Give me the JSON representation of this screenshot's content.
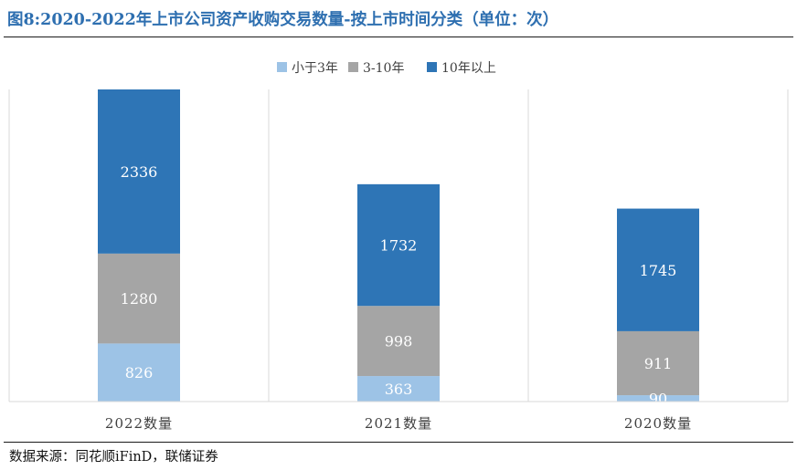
{
  "title": "图8:2020-2022年上市公司资产收购交易数量-按上市时间分类（单位：次）",
  "source": "数据来源：同花顺iFinD，联储证券",
  "chart_data": {
    "type": "bar",
    "stacked": true,
    "title": "图8:2020-2022年上市公司资产收购交易数量-按上市时间分类（单位：次）",
    "categories": [
      "2022数量",
      "2021数量",
      "2020数量"
    ],
    "series": [
      {
        "name": "小于3年",
        "color": "#9dc3e6",
        "values": [
          826,
          363,
          90
        ]
      },
      {
        "name": "3-10年",
        "color": "#a5a5a5",
        "values": [
          1280,
          998,
          911
        ]
      },
      {
        "name": "10年以上",
        "color": "#2e75b6",
        "values": [
          2336,
          1732,
          1745
        ]
      }
    ],
    "data_labels": true,
    "legend": "top-center",
    "grid": false,
    "xlabel": "",
    "ylabel": ""
  }
}
